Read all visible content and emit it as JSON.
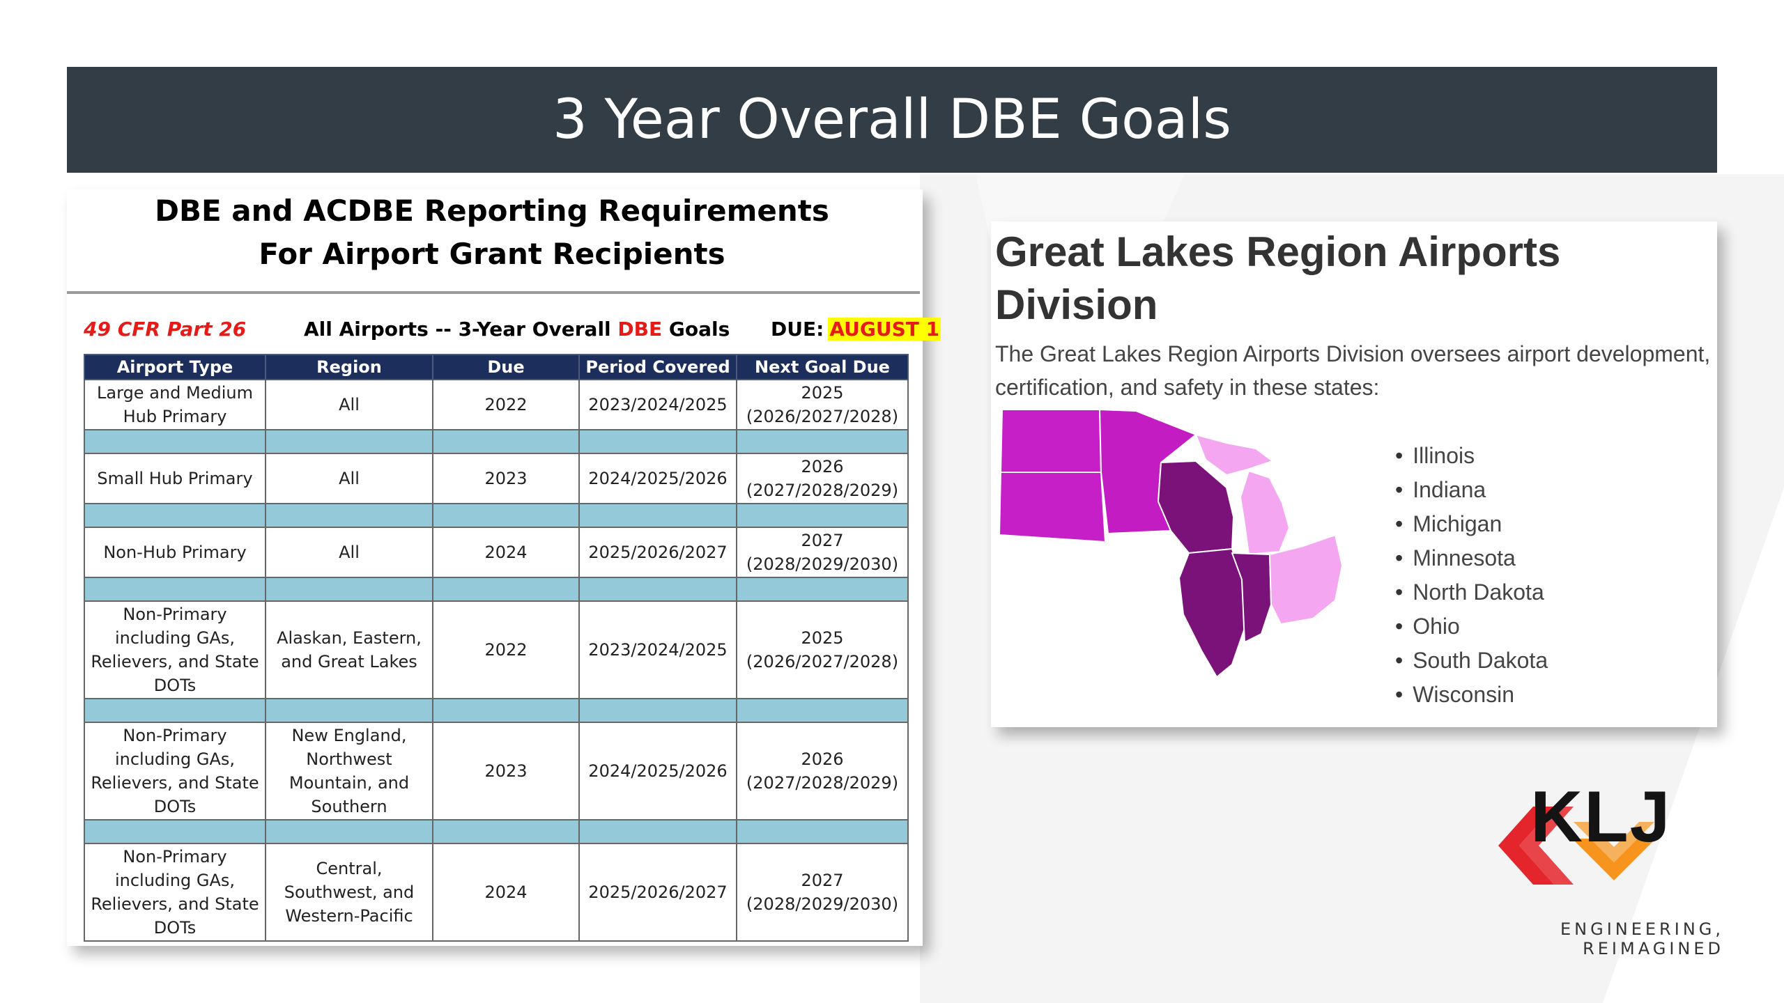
{
  "slide": {
    "title": "3 Year Overall DBE Goals"
  },
  "left_card": {
    "heading_line1": "DBE and ACDBE Reporting Requirements",
    "heading_line2": "For Airport Grant Recipients",
    "cfr": "49 CFR Part 26",
    "subtitle_pre": "All Airports -- 3-Year Overall ",
    "subtitle_dbe": "DBE",
    "subtitle_post": " Goals",
    "due_label": "DUE:",
    "due_date": "AUGUST 1",
    "columns": [
      "Airport Type",
      "Region",
      "Due",
      "Period Covered",
      "Next Goal Due"
    ],
    "rows": [
      {
        "type": "Large and Medium Hub Primary",
        "region": "All",
        "due": "2022",
        "period": "2023/2024/2025",
        "next_year": "2025",
        "next_period": "(2026/2027/2028)"
      },
      {
        "type": "Small Hub Primary",
        "region": "All",
        "due": "2023",
        "period": "2024/2025/2026",
        "next_year": "2026",
        "next_period": "(2027/2028/2029)"
      },
      {
        "type": "Non-Hub Primary",
        "region": "All",
        "due": "2024",
        "period": "2025/2026/2027",
        "next_year": "2027",
        "next_period": "(2028/2029/2030)"
      },
      {
        "type": "Non-Primary including GAs, Relievers, and State DOTs",
        "region": "Alaskan, Eastern, and Great Lakes",
        "due": "2022",
        "period": "2023/2024/2025",
        "next_year": "2025",
        "next_period": "(2026/2027/2028)"
      },
      {
        "type": "Non-Primary including GAs, Relievers, and State DOTs",
        "region": "New England, Northwest Mountain, and Southern",
        "due": "2023",
        "period": "2024/2025/2026",
        "next_year": "2026",
        "next_period": "(2027/2028/2029)"
      },
      {
        "type": "Non-Primary including GAs, Relievers, and State DOTs",
        "region": "Central, Southwest, and Western-Pacific",
        "due": "2024",
        "period": "2025/2026/2027",
        "next_year": "2027",
        "next_period": "(2028/2029/2030)"
      }
    ]
  },
  "right_card": {
    "title": "Great Lakes Region Airports Division",
    "description": "The Great Lakes Region Airports Division oversees airport development, certification, and safety in these states:",
    "states": [
      "Illinois",
      "Indiana",
      "Michigan",
      "Minnesota",
      "North Dakota",
      "Ohio",
      "South Dakota",
      "Wisconsin"
    ],
    "map_colors": {
      "dark": "#7a127a",
      "medium": "#a316a3",
      "bright": "#c71fc7",
      "light": "#f4a6f0"
    }
  },
  "logo": {
    "name": "KLJ",
    "tagline": "ENGINEERING, REIMAGINED",
    "colors": {
      "red": "#e4262c",
      "orange": "#f7941d",
      "dark": "#141414"
    }
  }
}
